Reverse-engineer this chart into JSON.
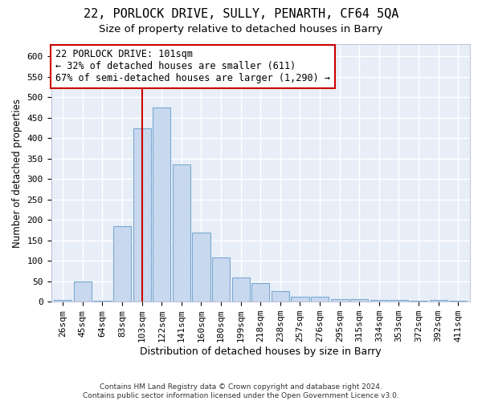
{
  "title1": "22, PORLOCK DRIVE, SULLY, PENARTH, CF64 5QA",
  "title2": "Size of property relative to detached houses in Barry",
  "xlabel": "Distribution of detached houses by size in Barry",
  "ylabel": "Number of detached properties",
  "footnote": "Contains HM Land Registry data © Crown copyright and database right 2024.\nContains public sector information licensed under the Open Government Licence v3.0.",
  "categories": [
    "26sqm",
    "45sqm",
    "64sqm",
    "83sqm",
    "103sqm",
    "122sqm",
    "141sqm",
    "160sqm",
    "180sqm",
    "199sqm",
    "218sqm",
    "238sqm",
    "257sqm",
    "276sqm",
    "295sqm",
    "315sqm",
    "334sqm",
    "353sqm",
    "372sqm",
    "392sqm",
    "411sqm"
  ],
  "values": [
    5,
    50,
    2,
    185,
    425,
    475,
    335,
    170,
    108,
    60,
    45,
    25,
    13,
    13,
    6,
    6,
    5,
    4,
    2,
    5,
    3
  ],
  "bar_color": "#c8d8ee",
  "bar_edge_color": "#7aaad0",
  "property_size_index": 4,
  "property_line_color": "#cc0000",
  "annotation_text": "22 PORLOCK DRIVE: 101sqm\n← 32% of detached houses are smaller (611)\n67% of semi-detached houses are larger (1,290) →",
  "annotation_box_color": "white",
  "annotation_box_edge_color": "#cc0000",
  "ylim": [
    0,
    630
  ],
  "yticks": [
    0,
    50,
    100,
    150,
    200,
    250,
    300,
    350,
    400,
    450,
    500,
    550,
    600
  ],
  "background_color": "#e8eef8",
  "grid_color": "white",
  "title1_fontsize": 11,
  "title2_fontsize": 9.5,
  "xlabel_fontsize": 9,
  "ylabel_fontsize": 8.5,
  "tick_fontsize": 8,
  "annot_fontsize": 8.5
}
